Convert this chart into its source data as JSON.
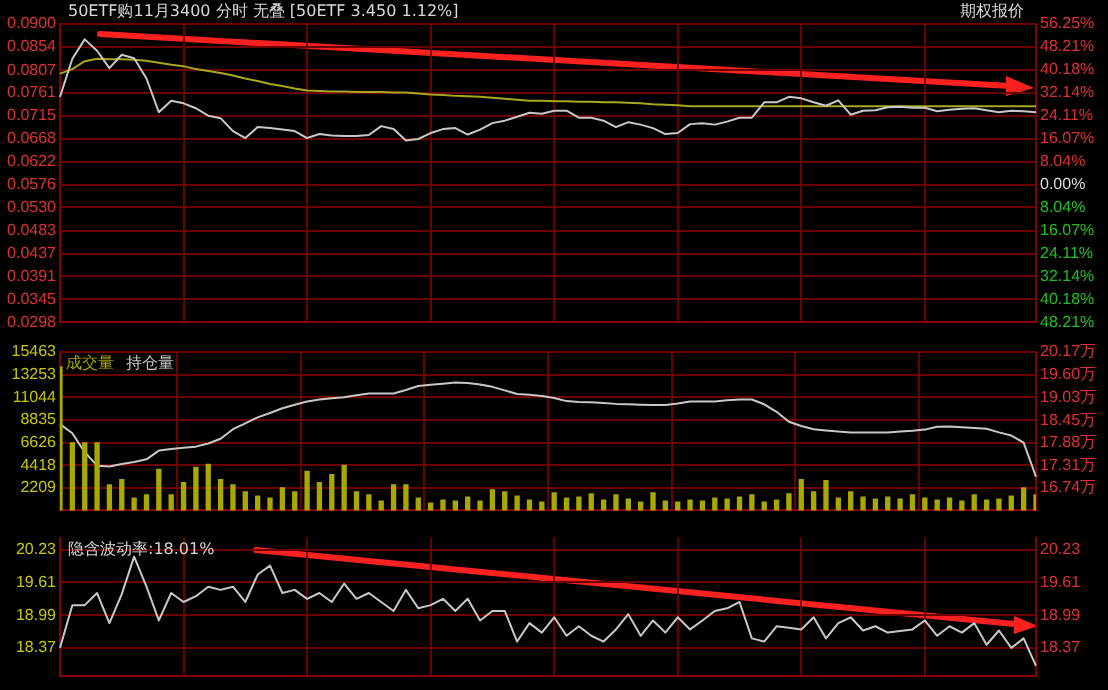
{
  "chart_data": [
    {
      "type": "line",
      "title": "50ETF购11月3400 分时 无叠 [50ETF 3.450 1.12%]",
      "annotations": [
        "期权报价"
      ],
      "grid": true,
      "marker": "none",
      "line_style": "solid",
      "tick_labels": "y",
      "categories": [
        null,
        null,
        null,
        null,
        null,
        null,
        null,
        null,
        null,
        null,
        null,
        null,
        null,
        null,
        null,
        null,
        null,
        null,
        null,
        null,
        null,
        null,
        null,
        null,
        null,
        null,
        null,
        null,
        null,
        null,
        null,
        null,
        null,
        null,
        null,
        null,
        null,
        null,
        null,
        null,
        null,
        null,
        null,
        null,
        null,
        null,
        null,
        null,
        null,
        null,
        null,
        null,
        null,
        null,
        null,
        null,
        null,
        null,
        null,
        null,
        null,
        null,
        null,
        null,
        null,
        null,
        null,
        null,
        null,
        null,
        null,
        null,
        null,
        null,
        null,
        null,
        null,
        null,
        null,
        null
      ],
      "ylim": [
        0.0298,
        0.09
      ],
      "yticks": [
        {
          "value": 0.09,
          "label": "0.0900"
        },
        0.0854,
        0.0807,
        0.0761,
        0.0715,
        0.0668,
        0.0622,
        0.0576,
        {
          "value": 0.053,
          "label": "0.0530"
        },
        0.0483,
        0.0437,
        0.0391,
        0.0345,
        0.0298
      ],
      "y2lim": [
        -48.21,
        56.25
      ],
      "y2ticks": [
        {
          "value": 56.25,
          "label": "56.25%"
        },
        {
          "value": 48.21,
          "label": "48.21%"
        },
        {
          "value": 40.18,
          "label": "40.18%"
        },
        {
          "value": 32.14,
          "label": "32.14%"
        },
        {
          "value": 24.11,
          "label": "24.11%"
        },
        {
          "value": 16.07,
          "label": "16.07%"
        },
        {
          "value": 8.04,
          "label": "8.04%"
        },
        {
          "value": 0,
          "label": "0.00%"
        },
        {
          "value": -8.04,
          "label": "8.04%"
        },
        {
          "value": -16.07,
          "label": "16.07%"
        },
        {
          "value": -24.11,
          "label": "24.11%"
        },
        {
          "value": -32.14,
          "label": "32.14%"
        },
        {
          "value": -40.18,
          "label": "40.18%"
        },
        {
          "value": -48.21,
          "label": "48.21%"
        }
      ],
      "series": [
        {
          "type": "line",
          "color": "#c8c8c8",
          "values": [
            0.0753,
            0.083,
            0.0869,
            0.0846,
            0.0811,
            0.0838,
            0.0831,
            0.079,
            0.0722,
            0.0745,
            0.074,
            0.073,
            0.0715,
            0.071,
            0.0684,
            0.067,
            0.0692,
            0.069,
            0.0687,
            0.0684,
            0.067,
            0.0678,
            0.0675,
            0.0674,
            0.0674,
            0.0676,
            0.0694,
            0.0688,
            0.0665,
            0.0668,
            0.068,
            0.0688,
            0.069,
            0.0677,
            0.0687,
            0.07,
            0.0705,
            0.0713,
            0.0721,
            0.0719,
            0.0725,
            0.0725,
            0.0711,
            0.0711,
            0.0705,
            0.0692,
            0.0702,
            0.0697,
            0.069,
            0.0678,
            0.068,
            0.0698,
            0.07,
            0.0697,
            0.0703,
            0.0711,
            0.0711,
            0.0742,
            0.0742,
            0.0753,
            0.075,
            0.0742,
            0.0735,
            0.0746,
            0.0717,
            0.0725,
            0.0726,
            0.0732,
            0.0733,
            0.0731,
            0.0731,
            0.0724,
            0.0727,
            0.0729,
            0.073,
            0.0726,
            0.0722,
            0.0725,
            0.0724,
            0.0722
          ]
        },
        {
          "type": "line",
          "color": "#a8a820",
          "values": [
            0.08,
            0.0809,
            0.0825,
            0.083,
            0.0829,
            0.0829,
            0.0828,
            0.0826,
            0.0822,
            0.0818,
            0.0815,
            0.0809,
            0.0805,
            0.0801,
            0.0796,
            0.079,
            0.0785,
            0.0779,
            0.0775,
            0.077,
            0.0766,
            0.0765,
            0.0764,
            0.0764,
            0.0763,
            0.0763,
            0.0763,
            0.0762,
            0.0762,
            0.076,
            0.0758,
            0.0757,
            0.0755,
            0.0754,
            0.0753,
            0.0751,
            0.0749,
            0.0747,
            0.0745,
            0.0745,
            0.0744,
            0.0744,
            0.0743,
            0.0743,
            0.0742,
            0.0742,
            0.0741,
            0.074,
            0.0738,
            0.0737,
            0.0736,
            0.0734,
            0.0734,
            0.0734,
            0.0734,
            0.0734,
            0.0734,
            0.0734,
            0.0734,
            0.0734,
            0.0734,
            0.0734,
            0.0734,
            0.0734,
            0.0734,
            0.0734,
            0.0734,
            0.0734,
            0.0734,
            0.0734,
            0.0734,
            0.0734,
            0.0734,
            0.0734,
            0.0734,
            0.0734,
            0.0734,
            0.0734,
            0.0734,
            0.0734
          ]
        }
      ]
    },
    {
      "type": "line",
      "grid": true,
      "marker": "none",
      "line_style": "solid",
      "tick_labels": "y",
      "categories": [
        null,
        null,
        null,
        null,
        null,
        null,
        null,
        null,
        null,
        null,
        null,
        null,
        null,
        null,
        null,
        null,
        null,
        null,
        null,
        null,
        null,
        null,
        null,
        null,
        null,
        null,
        null,
        null,
        null,
        null,
        null,
        null,
        null,
        null,
        null,
        null,
        null,
        null,
        null,
        null,
        null,
        null,
        null,
        null,
        null,
        null,
        null,
        null,
        null,
        null,
        null,
        null,
        null,
        null,
        null,
        null,
        null,
        null,
        null,
        null,
        null,
        null,
        null,
        null,
        null,
        null,
        null,
        null,
        null,
        null,
        null,
        null,
        null,
        null,
        null,
        null,
        null,
        null,
        null,
        null
      ],
      "ylim": [
        0,
        15463
      ],
      "yticks": [
        2209,
        4418,
        6626,
        8835,
        11044,
        13253,
        15463
      ],
      "y2lim": [
        16.17,
        20.17
      ],
      "y2ticks": [
        {
          "value": 16.74,
          "label": "16.74万"
        },
        {
          "value": 17.31,
          "label": "17.31万"
        },
        {
          "value": 17.88,
          "label": "17.88万"
        },
        {
          "value": 18.45,
          "label": "18.45万"
        },
        {
          "value": 19.03,
          "label": "19.03万"
        },
        {
          "value": 19.6,
          "label": "19.60万"
        },
        {
          "value": 20.17,
          "label": "20.17万"
        }
      ],
      "series": [
        {
          "type": "bar",
          "name": "成交量",
          "color": "#a8a800",
          "values": [
            14000,
            6600,
            6600,
            6600,
            2500,
            3000,
            1200,
            1500,
            4000,
            1500,
            2700,
            4200,
            4500,
            3000,
            2500,
            1800,
            1400,
            1200,
            2200,
            1800,
            3800,
            2700,
            3500,
            4400,
            1800,
            1500,
            900,
            2500,
            2500,
            1200,
            700,
            1000,
            900,
            1300,
            900,
            2000,
            1800,
            1400,
            1000,
            800,
            1700,
            1200,
            1300,
            1600,
            1000,
            1500,
            1100,
            800,
            1700,
            900,
            800,
            1000,
            900,
            1200,
            1100,
            1300,
            1500,
            800,
            1000,
            1600,
            3000,
            1800,
            2900,
            1200,
            1800,
            1300,
            1100,
            1300,
            1100,
            1500,
            1200,
            1000,
            1200,
            900,
            1500,
            1000,
            1100,
            1400,
            2200,
            1500
          ]
        },
        {
          "type": "line",
          "name": "持仓量",
          "color": "#c8c8c8",
          "axis": "y2",
          "values": [
            18.35,
            18.12,
            17.64,
            17.3,
            17.28,
            17.34,
            17.39,
            17.46,
            17.68,
            17.72,
            17.75,
            17.78,
            17.86,
            17.98,
            18.22,
            18.37,
            18.52,
            18.63,
            18.75,
            18.84,
            18.92,
            18.97,
            19.0,
            19.03,
            19.08,
            19.12,
            19.12,
            19.12,
            19.21,
            19.31,
            19.34,
            19.37,
            19.4,
            19.39,
            19.35,
            19.29,
            19.2,
            19.11,
            19.09,
            19.06,
            19.01,
            18.93,
            18.91,
            18.9,
            18.88,
            18.86,
            18.85,
            18.84,
            18.83,
            18.83,
            18.87,
            18.92,
            18.92,
            18.92,
            18.95,
            18.97,
            18.97,
            18.85,
            18.66,
            18.41,
            18.3,
            18.22,
            18.19,
            18.16,
            18.14,
            18.14,
            18.14,
            18.14,
            18.16,
            18.18,
            18.21,
            18.28,
            18.29,
            18.27,
            18.25,
            18.23,
            18.14,
            18.06,
            17.88,
            17.02
          ]
        }
      ]
    },
    {
      "type": "line",
      "title": "隐含波动率:18.01%",
      "grid": true,
      "marker": "none",
      "line_style": "solid",
      "tick_labels": "y",
      "categories": [
        null,
        null,
        null,
        null,
        null,
        null,
        null,
        null,
        null,
        null,
        null,
        null,
        null,
        null,
        null,
        null,
        null,
        null,
        null,
        null,
        null,
        null,
        null,
        null,
        null,
        null,
        null,
        null,
        null,
        null,
        null,
        null,
        null,
        null,
        null,
        null,
        null,
        null,
        null,
        null,
        null,
        null,
        null,
        null,
        null,
        null,
        null,
        null,
        null,
        null,
        null,
        null,
        null,
        null,
        null,
        null,
        null,
        null,
        null,
        null,
        null,
        null,
        null,
        null,
        null,
        null,
        null,
        null,
        null,
        null,
        null,
        null,
        null,
        null,
        null,
        null,
        null,
        null,
        null,
        null
      ],
      "ylim": [
        17.83,
        20.46
      ],
      "yticks": [
        18.37,
        18.99,
        19.61,
        20.23
      ],
      "y2lim": [
        17.83,
        20.46
      ],
      "y2ticks": [
        18.37,
        18.99,
        19.61,
        20.23
      ],
      "series": [
        {
          "type": "line",
          "color": "#c8c8c8",
          "values": [
            18.37,
            19.18,
            19.18,
            19.41,
            18.84,
            19.39,
            20.1,
            19.53,
            18.89,
            19.41,
            19.24,
            19.35,
            19.53,
            19.47,
            19.53,
            19.24,
            19.76,
            19.93,
            19.41,
            19.47,
            19.3,
            19.41,
            19.24,
            19.59,
            19.3,
            19.41,
            19.24,
            19.07,
            19.47,
            19.12,
            19.18,
            19.3,
            19.07,
            19.3,
            18.89,
            19.07,
            19.07,
            18.49,
            18.84,
            18.66,
            18.95,
            18.6,
            18.78,
            18.6,
            18.49,
            18.72,
            19.01,
            18.6,
            18.89,
            18.66,
            18.95,
            18.72,
            18.89,
            19.07,
            19.12,
            19.24,
            18.55,
            18.49,
            18.78,
            18.75,
            18.72,
            18.95,
            18.55,
            18.84,
            18.95,
            18.7,
            18.78,
            18.66,
            18.69,
            18.72,
            18.89,
            18.6,
            18.78,
            18.66,
            18.84,
            18.43,
            18.7,
            18.37,
            18.55,
            18.03
          ]
        }
      ]
    }
  ]
}
